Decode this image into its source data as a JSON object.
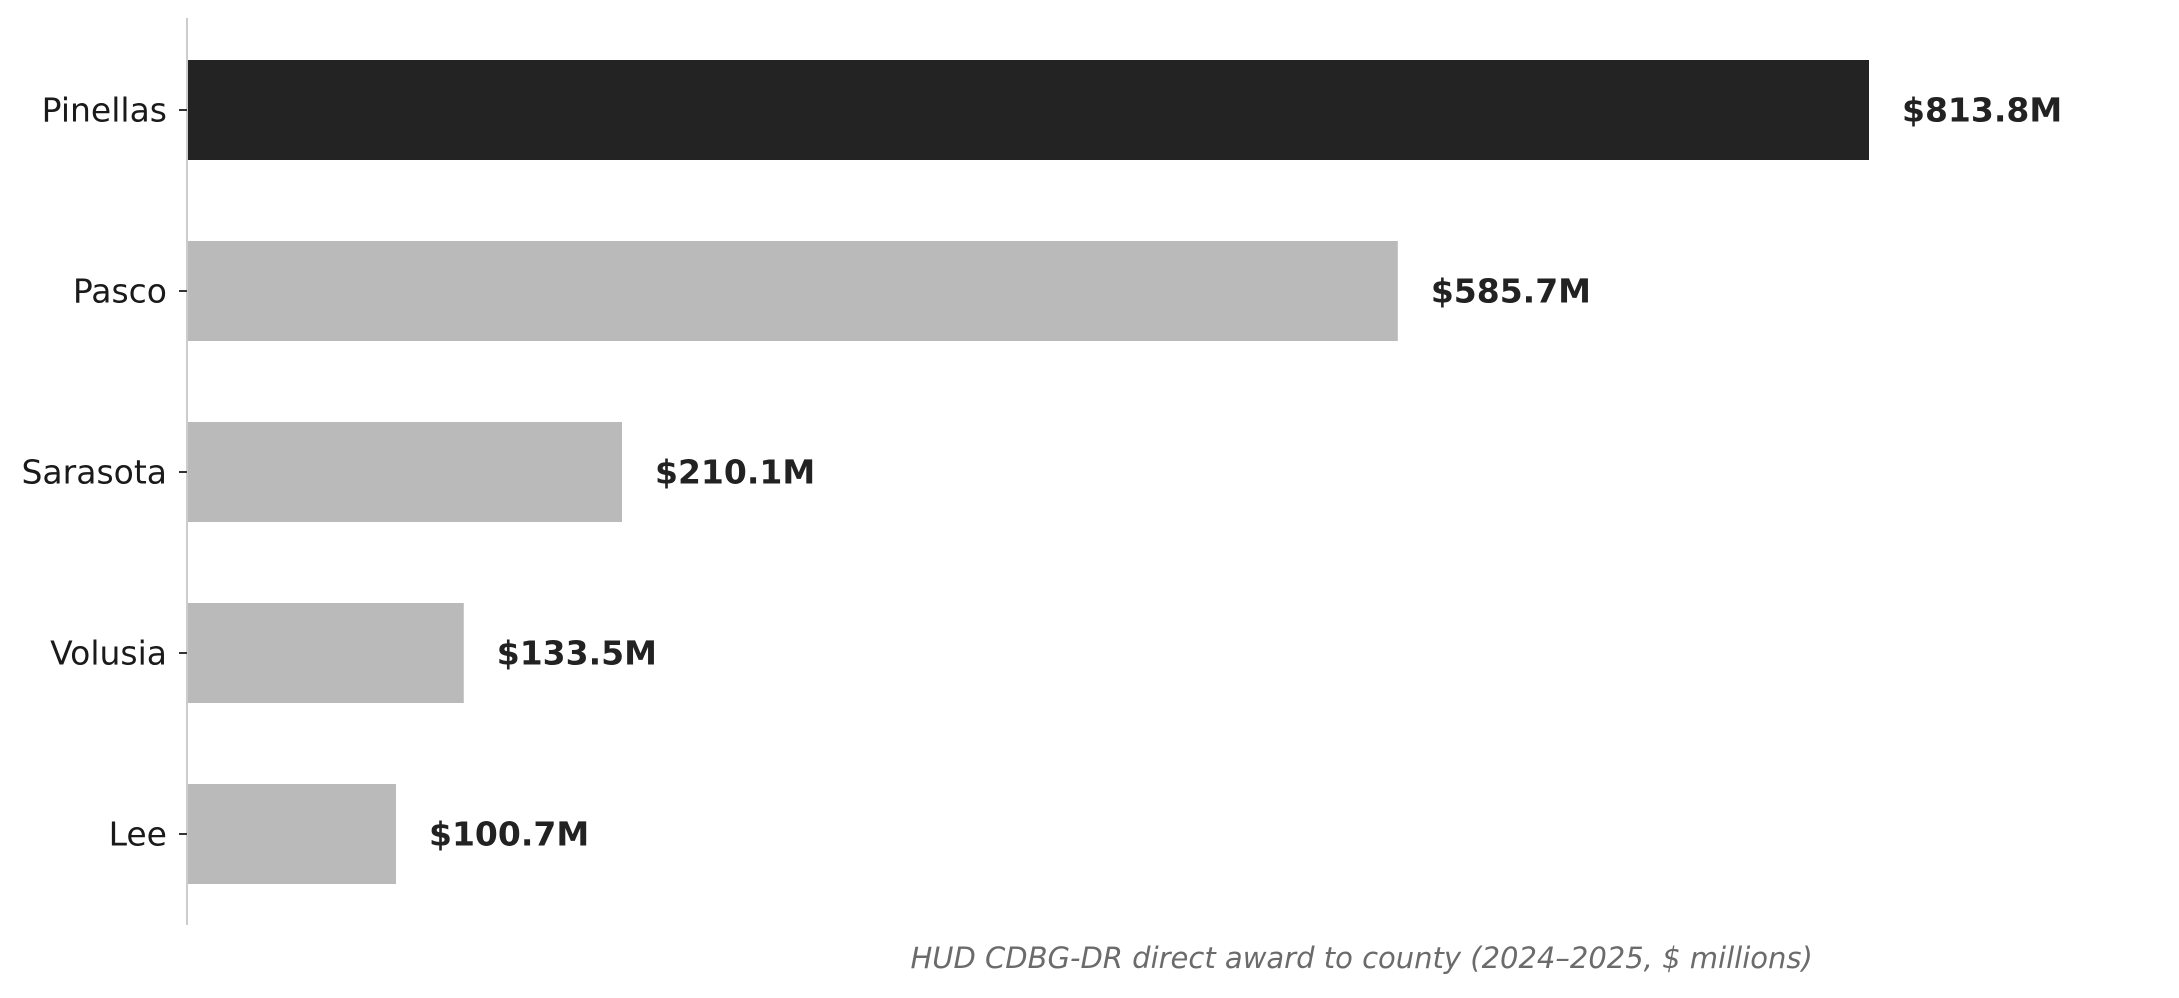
{
  "chart_data": {
    "type": "bar",
    "orientation": "horizontal",
    "categories": [
      "Pinellas",
      "Pasco",
      "Sarasota",
      "Volusia",
      "Lee"
    ],
    "values": [
      813.8,
      585.7,
      210.1,
      133.5,
      100.7
    ],
    "value_labels": [
      "$813.8M",
      "$585.7M",
      "$210.1M",
      "$133.5M",
      "$100.7M"
    ],
    "highlight": "Pinellas",
    "xlabel": "HUD CDBG-DR direct award to county (2024–2025, $ millions)",
    "ylabel": "",
    "xlim": [
      0,
      955
    ],
    "grid": false,
    "colors": {
      "highlight": "#232323",
      "default": "#bababa",
      "axis": "#cccccc",
      "tick": "#333333"
    }
  }
}
